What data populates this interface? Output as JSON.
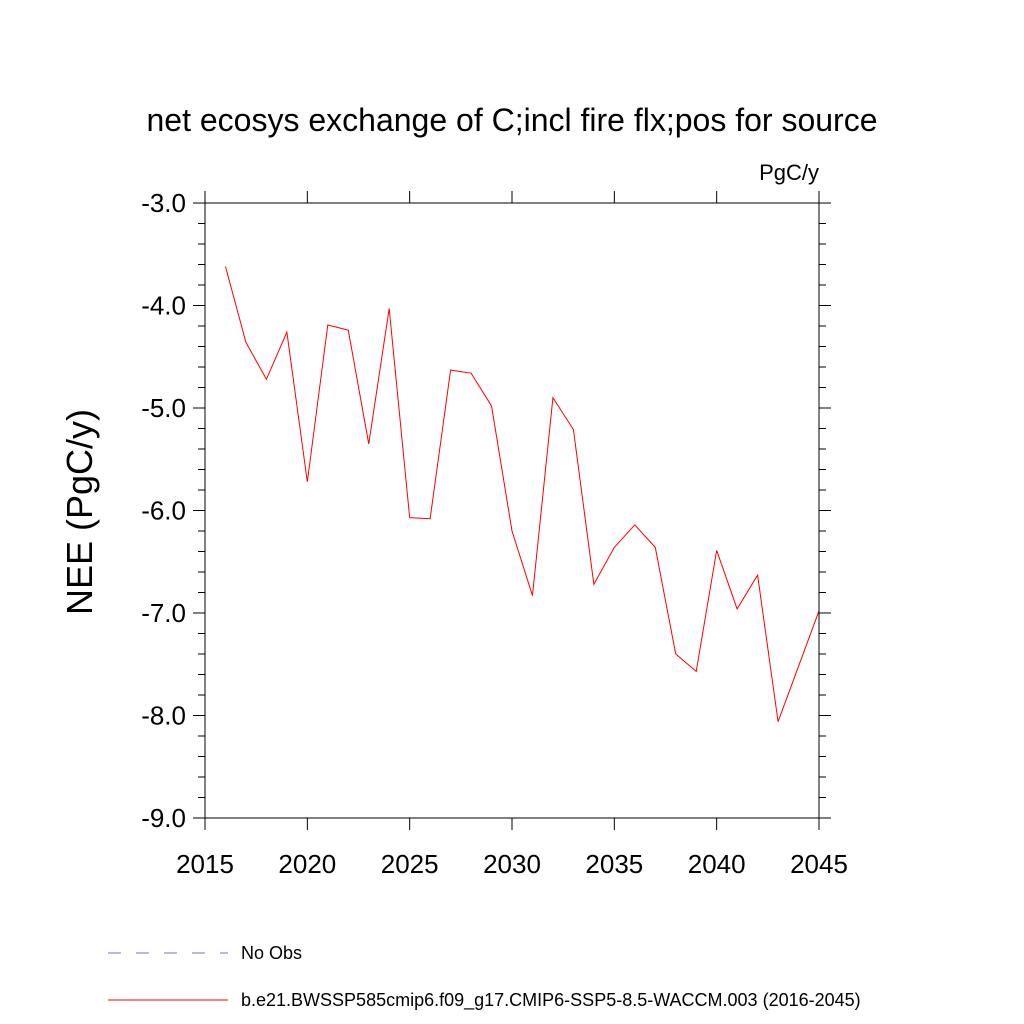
{
  "chart_data": {
    "type": "line",
    "title": "net ecosys exchange of C;incl fire flx;pos for source",
    "units_label": "PgC/y",
    "xlabel": "",
    "ylabel": "NEE  (PgC/y)",
    "xlim": [
      2015,
      2045
    ],
    "ylim": [
      -9.0,
      -3.0
    ],
    "x_ticks": [
      2015,
      2020,
      2025,
      2030,
      2035,
      2040,
      2045
    ],
    "x_tick_labels": [
      "2015",
      "2020",
      "2025",
      "2030",
      "2035",
      "2040",
      "2045"
    ],
    "y_ticks": [
      -3.0,
      -4.0,
      -5.0,
      -6.0,
      -7.0,
      -8.0,
      -9.0
    ],
    "y_tick_labels": [
      "-3.0",
      "-4.0",
      "-5.0",
      "-6.0",
      "-7.0",
      "-8.0",
      "-9.0"
    ],
    "grid": false,
    "legend_position": "bottom",
    "series": [
      {
        "name": "b.e21.BWSSP585cmip6.f09_g17.CMIP6-SSP5-8.5-WACCM.003 (2016-2045)",
        "color": "#ff0000",
        "style": "solid",
        "x": [
          2016,
          2017,
          2018,
          2019,
          2020,
          2021,
          2022,
          2023,
          2024,
          2025,
          2026,
          2027,
          2028,
          2029,
          2030,
          2031,
          2032,
          2033,
          2034,
          2035,
          2036,
          2037,
          2038,
          2039,
          2040,
          2041,
          2042,
          2043,
          2044,
          2045
        ],
        "values": [
          -3.62,
          -4.36,
          -4.72,
          -4.26,
          -5.72,
          -4.19,
          -4.24,
          -5.35,
          -4.03,
          -6.07,
          -6.08,
          -4.63,
          -4.66,
          -4.98,
          -6.2,
          -6.83,
          -4.9,
          -5.21,
          -6.72,
          -6.36,
          -6.14,
          -6.36,
          -7.4,
          -7.57,
          -6.39,
          -6.96,
          -6.63,
          -8.06,
          -7.52,
          -6.98
        ]
      }
    ],
    "legend": [
      {
        "label": "No Obs",
        "color": "#7b6fc0",
        "style": "dashed"
      },
      {
        "label": "b.e21.BWSSP585cmip6.f09_g17.CMIP6-SSP5-8.5-WACCM.003 (2016-2045)",
        "color": "#ff0000",
        "style": "solid"
      }
    ]
  }
}
